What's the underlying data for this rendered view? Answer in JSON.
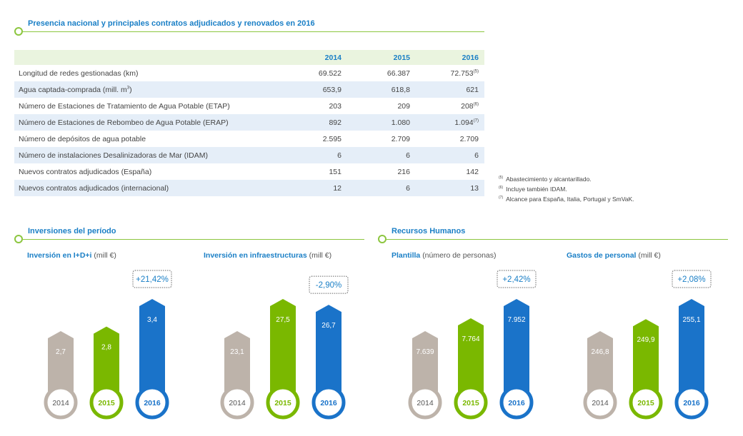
{
  "sections": {
    "presence_title": "Presencia nacional y principales contratos adjudicados y renovados en 2016",
    "investments_title": "Inversiones del período",
    "hr_title": "Recursos Humanos"
  },
  "table": {
    "headers": [
      "",
      "2014",
      "2015",
      "2016"
    ],
    "rows": [
      {
        "label": "Longitud de redes gestionadas (km)",
        "v2014": "69.522",
        "v2015": "66.387",
        "v2016": "72.753",
        "note2016": "(5)"
      },
      {
        "label": "Agua captada-comprada (mill. m",
        "label_sup": "3",
        "label_end": ")",
        "v2014": "653,9",
        "v2015": "618,8",
        "v2016": "621",
        "note2016": ""
      },
      {
        "label": "Número de Estaciones de Tratamiento de Agua Potable (ETAP)",
        "v2014": "203",
        "v2015": "209",
        "v2016": "208",
        "note2016": "(6)"
      },
      {
        "label": "Número de Estaciones de Rebombeo de Agua Potable (ERAP)",
        "v2014": "892",
        "v2015": "1.080",
        "v2016": "1.094",
        "note2016": "(7)"
      },
      {
        "label": "Número de depósitos de agua potable",
        "v2014": "2.595",
        "v2015": "2.709",
        "v2016": "2.709",
        "note2016": ""
      },
      {
        "label": "Número de instalaciones Desalinizadoras de Mar (IDAM)",
        "v2014": "6",
        "v2015": "6",
        "v2016": "6",
        "note2016": ""
      },
      {
        "label": "Nuevos contratos adjudicados (España)",
        "v2014": "151",
        "v2015": "216",
        "v2016": "142",
        "note2016": ""
      },
      {
        "label": "Nuevos contratos adjudicados (internacional)",
        "v2014": "12",
        "v2015": "6",
        "v2016": "13",
        "note2016": ""
      }
    ]
  },
  "notes": [
    {
      "mark": "(5)",
      "text": "Abastecimiento y alcantarillado."
    },
    {
      "mark": "(6)",
      "text": "Incluye también IDAM."
    },
    {
      "mark": "(7)",
      "text": "Alcance para España, Italia, Portugal y SmVaK."
    }
  ],
  "colors": {
    "y2014": "#bdb3aa",
    "y2015": "#7ab800",
    "y2016": "#1a73c9",
    "accent": "#1a7fc6",
    "green_line": "#8cc63f"
  },
  "chart_data": [
    {
      "type": "bar",
      "title": "Inversión en I+D+i",
      "unit": "(mill €)",
      "categories": [
        "2014",
        "2015",
        "2016"
      ],
      "values": [
        2.7,
        2.8,
        3.4
      ],
      "value_labels": [
        "2,7",
        "2,8",
        "3,4"
      ],
      "change_label": "+21,42%"
    },
    {
      "type": "bar",
      "title": "Inversión en infraestructuras",
      "unit": "(mill €)",
      "categories": [
        "2014",
        "2015",
        "2016"
      ],
      "values": [
        23.1,
        27.5,
        26.7
      ],
      "value_labels": [
        "23,1",
        "27,5",
        "26,7"
      ],
      "change_label": "-2,90%"
    },
    {
      "type": "bar",
      "title": "Plantilla",
      "unit": "(número de personas)",
      "categories": [
        "2014",
        "2015",
        "2016"
      ],
      "values": [
        7639,
        7764,
        7952
      ],
      "value_labels": [
        "7.639",
        "7.764",
        "7.952"
      ],
      "change_label": "+2,42%"
    },
    {
      "type": "bar",
      "title": "Gastos de personal",
      "unit": "(mill €)",
      "categories": [
        "2014",
        "2015",
        "2016"
      ],
      "values": [
        246.8,
        249.9,
        255.1
      ],
      "value_labels": [
        "246,8",
        "249,9",
        "255,1"
      ],
      "change_label": "+2,08%"
    }
  ]
}
